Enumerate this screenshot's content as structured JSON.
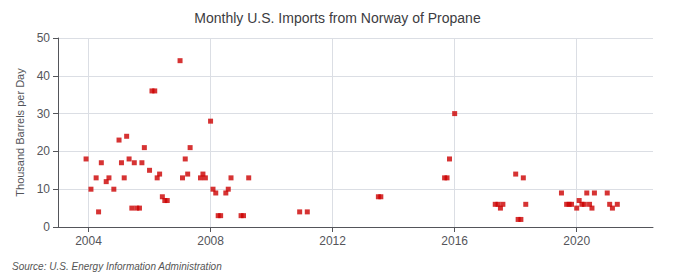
{
  "chart_data": {
    "type": "scatter",
    "title": "Monthly U.S. Imports from Norway of Propane",
    "ylabel": "Thousand Barrels per Day",
    "annotations": [
      "Source: U.S. Energy Information Administration"
    ],
    "color": "#cc0000",
    "marker": "square",
    "grid": true,
    "xlim": [
      2003.0,
      2022.5
    ],
    "ylim": [
      0,
      50
    ],
    "xticks": [
      2004,
      2008,
      2012,
      2016,
      2020
    ],
    "yticks": [
      0,
      10,
      20,
      30,
      40,
      50
    ],
    "x": [
      2003.92,
      2004.08,
      2004.25,
      2004.33,
      2004.42,
      2004.58,
      2004.67,
      2004.83,
      2005.0,
      2005.08,
      2005.17,
      2005.25,
      2005.33,
      2005.42,
      2005.5,
      2005.58,
      2005.67,
      2005.75,
      2005.83,
      2006.0,
      2006.08,
      2006.17,
      2006.25,
      2006.33,
      2006.42,
      2006.5,
      2006.58,
      2007.0,
      2007.08,
      2007.17,
      2007.25,
      2007.33,
      2007.67,
      2007.75,
      2007.83,
      2008.0,
      2008.08,
      2008.17,
      2008.25,
      2008.33,
      2008.5,
      2008.58,
      2008.67,
      2009.0,
      2009.08,
      2009.25,
      2010.92,
      2011.17,
      2013.5,
      2013.58,
      2015.67,
      2015.75,
      2015.83,
      2016.0,
      2017.33,
      2017.42,
      2017.5,
      2017.58,
      2018.0,
      2018.08,
      2018.17,
      2018.25,
      2018.33,
      2019.5,
      2019.67,
      2019.75,
      2019.83,
      2020.0,
      2020.08,
      2020.17,
      2020.25,
      2020.33,
      2020.42,
      2020.5,
      2020.58,
      2021.0,
      2021.08,
      2021.17,
      2021.33
    ],
    "values": [
      18,
      10,
      13,
      4,
      17,
      12,
      13,
      10,
      23,
      17,
      13,
      24,
      18,
      5,
      17,
      5,
      5,
      17,
      21,
      15,
      36,
      36,
      13,
      14,
      8,
      7,
      7,
      44,
      13,
      18,
      14,
      21,
      13,
      14,
      13,
      28,
      10,
      9,
      3,
      3,
      9,
      10,
      13,
      3,
      3,
      13,
      4,
      4,
      8,
      8,
      13,
      13,
      18,
      30,
      6,
      6,
      5,
      6,
      14,
      2,
      2,
      13,
      6,
      9,
      6,
      6,
      6,
      5,
      7,
      6,
      6,
      9,
      6,
      5,
      9,
      9,
      6,
      5,
      6
    ]
  }
}
